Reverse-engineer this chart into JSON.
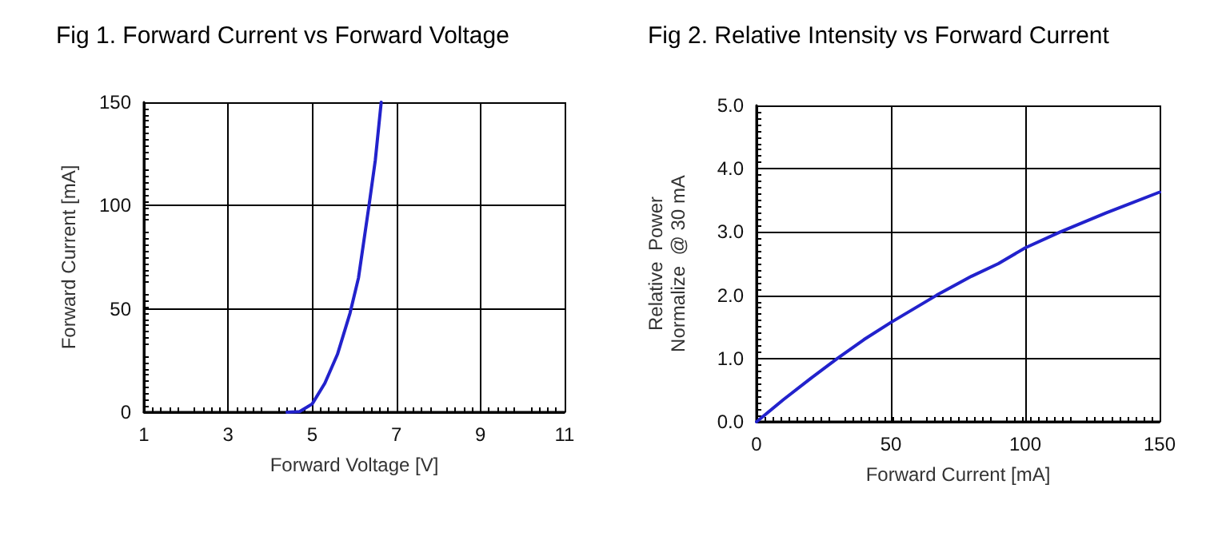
{
  "chart_data": [
    {
      "type": "line",
      "title": "Fig 1. Forward Current vs Forward Voltage",
      "xlabel": "Forward Voltage [V]",
      "ylabel": "Forward Current [mA]",
      "xlim": [
        1,
        11
      ],
      "xticks": [
        1,
        3,
        5,
        7,
        9,
        11
      ],
      "ylim": [
        0,
        150
      ],
      "yticks": [
        0,
        50,
        100,
        150
      ],
      "grid": true,
      "marker": "none",
      "line_style": "solid",
      "series": [
        {
          "color": "#2222cc",
          "x": [
            4.4,
            4.7,
            5.0,
            5.3,
            5.6,
            5.9,
            6.1,
            6.35,
            6.5,
            6.64
          ],
          "values": [
            0,
            0.3,
            4,
            14,
            28,
            48,
            65,
            100,
            122,
            150
          ]
        }
      ]
    },
    {
      "type": "line",
      "title": "Fig 2. Relative Intensity vs Forward Current",
      "xlabel": "Forward Current [mA]",
      "ylabel": "Relative  Power\nNormalize  @ 30 mA",
      "xlim": [
        0,
        150
      ],
      "xticks": [
        0,
        50,
        100,
        150
      ],
      "ylim": [
        0,
        5
      ],
      "yticks": [
        {
          "value": 0,
          "label": "0.0"
        },
        {
          "value": 1,
          "label": "1.0"
        },
        {
          "value": 2,
          "label": "2.0"
        },
        {
          "value": 3,
          "label": "3.0"
        },
        {
          "value": 4,
          "label": "4.0"
        },
        {
          "value": 5,
          "label": "5.0"
        }
      ],
      "grid": true,
      "marker": "none",
      "line_style": "solid",
      "series": [
        {
          "color": "#2222cc",
          "x": [
            0,
            10,
            20,
            30,
            40,
            50,
            67,
            80,
            90,
            100,
            113,
            130,
            150
          ],
          "values": [
            0,
            0.35,
            0.68,
            1.0,
            1.3,
            1.57,
            2.0,
            2.3,
            2.5,
            2.75,
            3.0,
            3.3,
            3.63
          ]
        }
      ]
    }
  ]
}
